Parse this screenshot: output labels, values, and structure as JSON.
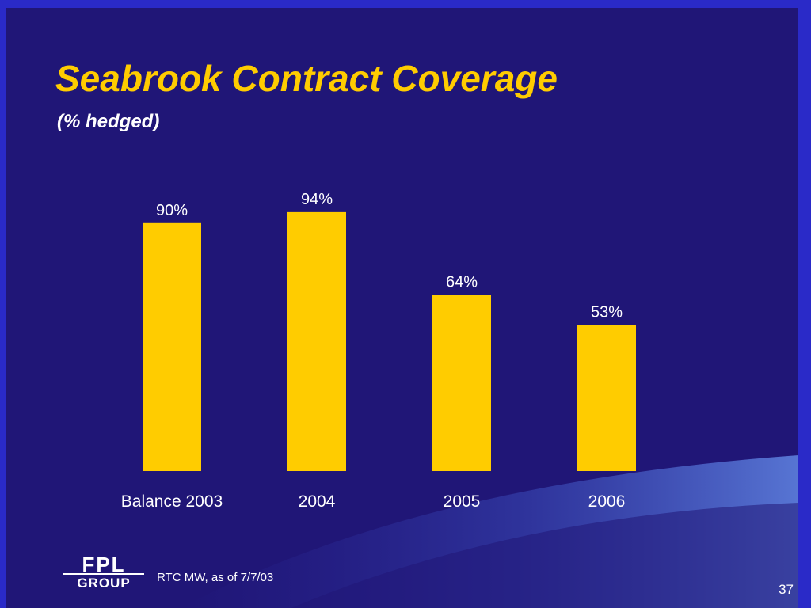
{
  "slide": {
    "title": "Seabrook Contract Coverage",
    "subtitle": "(% hedged)",
    "footnote": "RTC MW, as of  7/7/03",
    "page_number": "37",
    "logo": {
      "name": "FPL GROUP",
      "line1": "FPL",
      "line2": "GROUP"
    }
  },
  "colors": {
    "background": "#201677",
    "border": "#2a2ac8",
    "bar": "#ffcc00",
    "title": "#ffcc00",
    "text": "#ffffff"
  },
  "chart_data": {
    "type": "bar",
    "title": "Seabrook Contract Coverage",
    "subtitle": "(% hedged)",
    "categories": [
      "Balance 2003",
      "2004",
      "2005",
      "2006"
    ],
    "values": [
      90,
      94,
      64,
      53
    ],
    "value_labels": [
      "90%",
      "94%",
      "64%",
      "53%"
    ],
    "unit": "%",
    "ylim": [
      0,
      100
    ],
    "grid": false,
    "legend": "none"
  }
}
